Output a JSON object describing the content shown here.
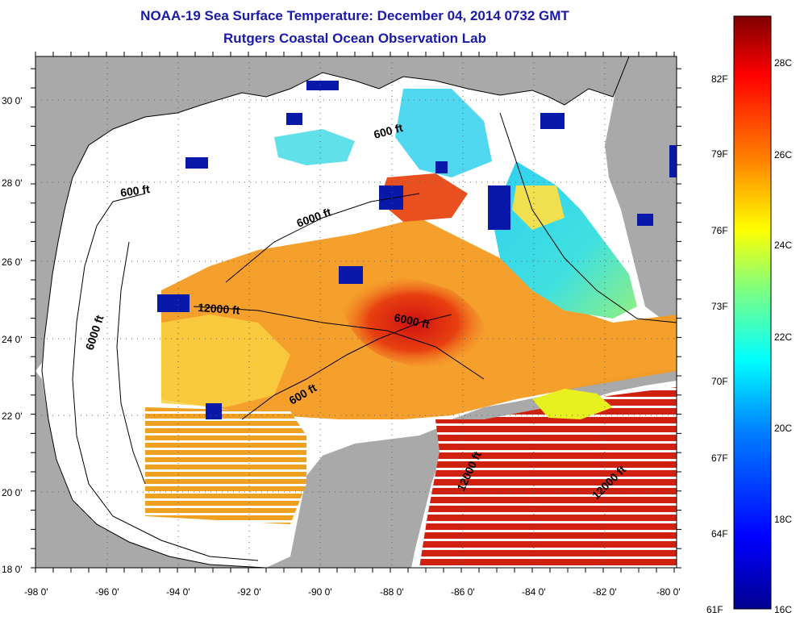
{
  "title": {
    "line1": "NOAA-19 Sea Surface Temperature:  December 04, 2014 0732 GMT",
    "line2": "Rutgers Coastal Ocean Observation Lab"
  },
  "map": {
    "lon_ticks": [
      "-98 0'",
      "-96 0'",
      "-94 0'",
      "-92 0'",
      "-90 0'",
      "-88 0'",
      "-86 0'",
      "-84 0'",
      "-82 0'",
      "-80 0'"
    ],
    "lat_ticks": [
      "18 0'",
      "20 0'",
      "22 0'",
      "24 0'",
      "26 0'",
      "28 0'",
      "30 0'"
    ],
    "lon_range": [
      -98,
      -80
    ],
    "lat_range": [
      18,
      31.2
    ],
    "contour_labels": [
      "600 ft",
      "6000 ft",
      "12000 ft",
      "6000 ft",
      "6000 ft",
      "600 ft",
      "600 ft",
      "12000 ft",
      "12000 ft"
    ],
    "colors": {
      "land": "#a9a9a9",
      "cloud": "#ffffff",
      "coast_line": "#000000",
      "title": "#1a1aa8"
    }
  },
  "colorbar": {
    "fahrenheit_labels": [
      "82F",
      "79F",
      "76F",
      "73F",
      "70F",
      "67F",
      "64F",
      "61F"
    ],
    "celsius_labels": [
      "28C",
      "26C",
      "24C",
      "22C",
      "20C",
      "18C",
      "16C"
    ],
    "range_c": [
      16,
      29.5
    ],
    "gradient": [
      "#00008f",
      "#0000ff",
      "#0080ff",
      "#00ffff",
      "#80ff80",
      "#ffff00",
      "#ff8000",
      "#ff0000",
      "#800000"
    ]
  }
}
